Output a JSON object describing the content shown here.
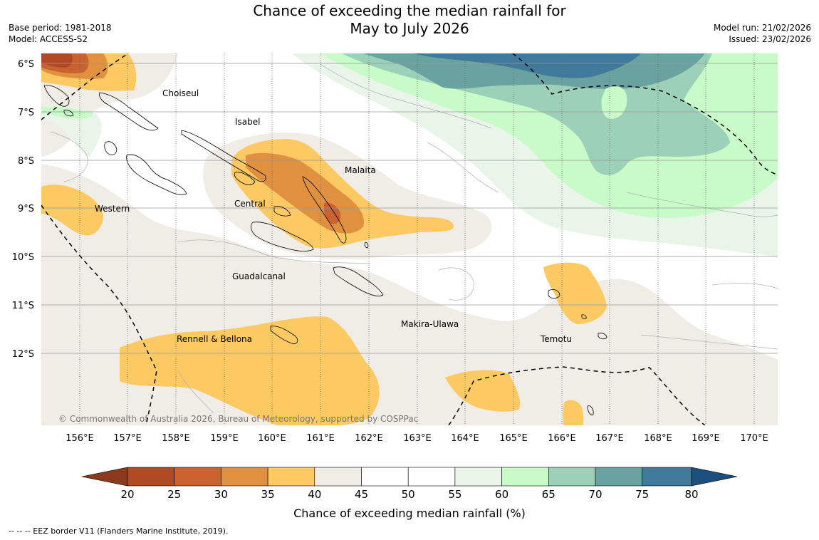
{
  "header": {
    "title_line1": "Chance of exceeding the median rainfall for",
    "title_line2": "May to July 2026",
    "base_period": "Base period: 1981-2018",
    "model": "Model: ACCESS-S2",
    "model_run": "Model run: 21/02/2026",
    "issued": "Issued: 23/02/2026"
  },
  "map": {
    "lat_labels": [
      "6°S",
      "7°S",
      "8°S",
      "9°S",
      "10°S",
      "11°S",
      "12°S"
    ],
    "lon_labels": [
      "156°E",
      "157°E",
      "158°E",
      "159°E",
      "160°E",
      "161°E",
      "162°E",
      "163°E",
      "164°E",
      "165°E",
      "166°E",
      "167°E",
      "168°E",
      "169°E",
      "170°E"
    ],
    "regions": {
      "choiseul": "Choiseul",
      "isabel": "Isabel",
      "malaita": "Malaita",
      "western": "Western",
      "central": "Central",
      "guadalcanal": "Guadalcanal",
      "makira": "Makira-Ulawa",
      "rennell": "Rennell & Bellona",
      "temotu": "Temotu"
    },
    "copyright": "© Commonwealth of Australia 2026, Bureau of Meteorology, supported by COSPPac"
  },
  "colorbar": {
    "ticks": [
      "20",
      "25",
      "30",
      "35",
      "40",
      "45",
      "50",
      "55",
      "60",
      "65",
      "70",
      "75",
      "80"
    ],
    "colors": {
      "lt20": "#8c3a1e",
      "c20_25": "#b04a25",
      "c25_30": "#c9622f",
      "c30_35": "#e0913f",
      "c35_40": "#fdc962",
      "c40_45": "#f0ece6",
      "c45_55": "#ffffff",
      "c55_60": "#e9f5e8",
      "c60_65": "#c8fbc8",
      "c65_70": "#9dd0b8",
      "c70_75": "#6aa2a2",
      "c75_80": "#41799b",
      "gt80": "#1d4f7d"
    },
    "label": "Chance of exceeding median rainfall (%)"
  },
  "footnote": "--  --  -- EEZ border V11 (Flanders Marine Institute, 2019)."
}
